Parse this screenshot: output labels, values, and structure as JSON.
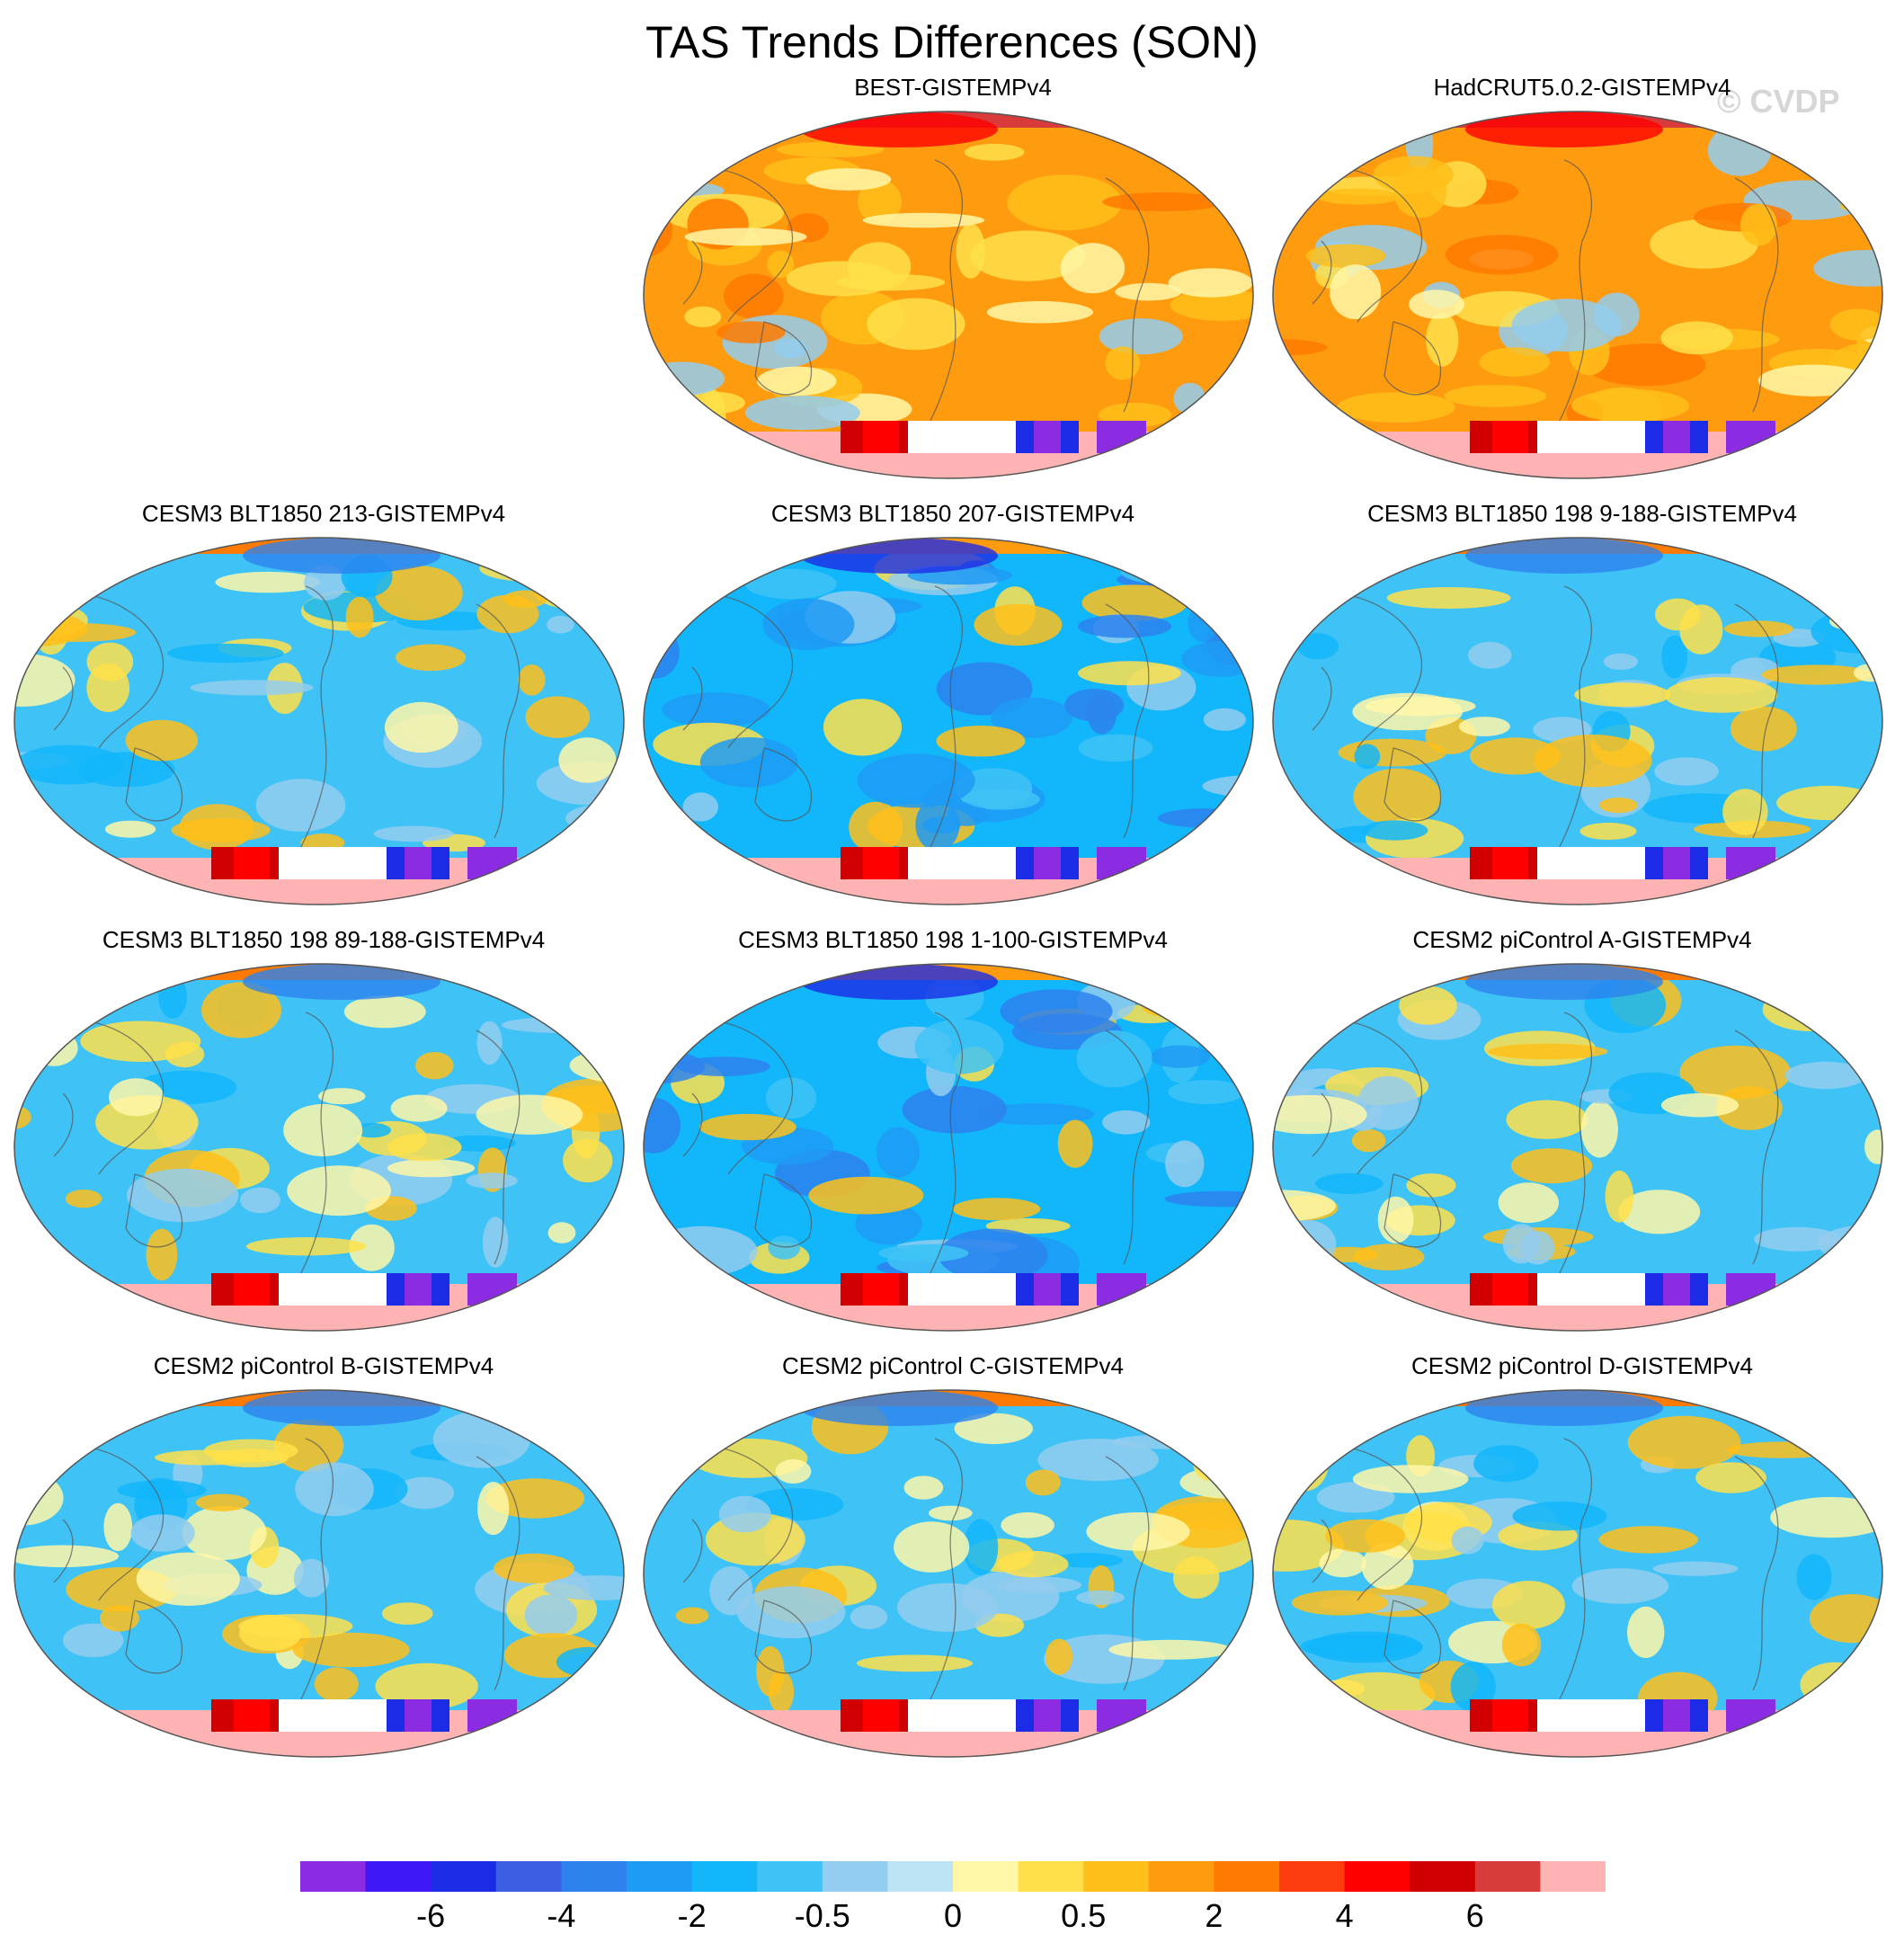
{
  "chart_data": {
    "type": "heatmap",
    "title": "TAS Trends Differences (SON)",
    "watermark": "© CVDP",
    "projection": "Robinson global map, Pacific-centered",
    "panels": [
      {
        "name": "BEST-GISTEMPv4",
        "position": "row1-col2",
        "scheme": "warm"
      },
      {
        "name": "HadCRUT5.0.2-GISTEMPv4",
        "position": "row1-col3",
        "scheme": "warm"
      },
      {
        "name": "CESM3 BLT1850 213-GISTEMPv4",
        "position": "row2-col1",
        "scheme": "cool"
      },
      {
        "name": "CESM3 BLT1850 207-GISTEMPv4",
        "position": "row2-col2",
        "scheme": "cold"
      },
      {
        "name": "CESM3 BLT1850 198 9-188-GISTEMPv4",
        "position": "row2-col3",
        "scheme": "cool"
      },
      {
        "name": "CESM3 BLT1850 198 89-188-GISTEMPv4",
        "position": "row3-col1",
        "scheme": "cool"
      },
      {
        "name": "CESM3 BLT1850 198 1-100-GISTEMPv4",
        "position": "row3-col2",
        "scheme": "cold"
      },
      {
        "name": "CESM2 piControl A-GISTEMPv4",
        "position": "row3-col3",
        "scheme": "cool"
      },
      {
        "name": "CESM2 piControl B-GISTEMPv4",
        "position": "row4-col1",
        "scheme": "cool"
      },
      {
        "name": "CESM2 piControl C-GISTEMPv4",
        "position": "row4-col2",
        "scheme": "cool"
      },
      {
        "name": "CESM2 piControl D-GISTEMPv4",
        "position": "row4-col3",
        "scheme": "cool"
      }
    ],
    "colorbar": {
      "colors": [
        "#8b2be2",
        "#3f17f5",
        "#1c2ce6",
        "#3c5ee0",
        "#2d82ee",
        "#1e9bf5",
        "#12b6fa",
        "#3fc3f6",
        "#93cdef",
        "#bde3f5",
        "#fff7a8",
        "#ffe04a",
        "#ffbf1a",
        "#ff9b0f",
        "#ff7a00",
        "#ff3b10",
        "#ff0000",
        "#d10000",
        "#d93a3a",
        "#ffb3b3"
      ],
      "labels": [
        "-6",
        "-4",
        "-2",
        "-0.5",
        "0",
        "0.5",
        "2",
        "4",
        "6"
      ],
      "label_edges": [
        2,
        4,
        6,
        8,
        10,
        12,
        14,
        16,
        18
      ]
    }
  }
}
